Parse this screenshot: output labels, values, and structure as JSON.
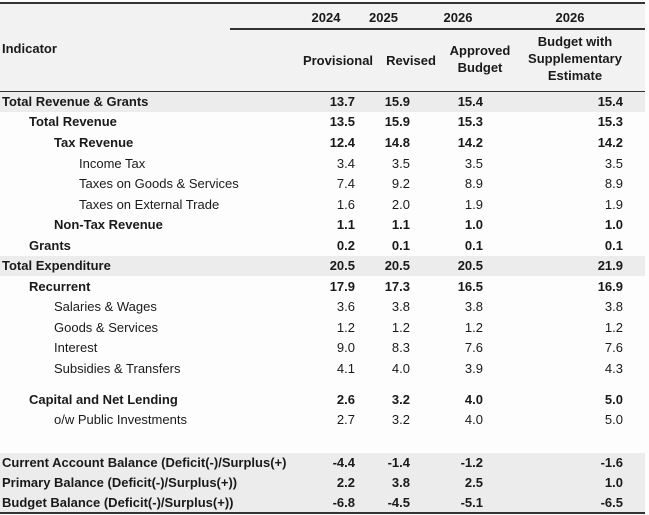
{
  "header": {
    "indicator": "Indicator",
    "columns": [
      {
        "year": "2024",
        "label": "Provisional"
      },
      {
        "year": "2025",
        "label": "Revised"
      },
      {
        "year": "2026",
        "label": "Approved Budget"
      },
      {
        "year": "2026",
        "label": "Budget with Supplementary Estimate"
      }
    ]
  },
  "rows": [
    {
      "label": "Total Revenue & Grants",
      "values": [
        "13.7",
        "15.9",
        "15.4",
        "15.4"
      ]
    },
    {
      "label": "Total Revenue",
      "values": [
        "13.5",
        "15.9",
        "15.3",
        "15.3"
      ]
    },
    {
      "label": "Tax Revenue",
      "values": [
        "12.4",
        "14.8",
        "14.2",
        "14.2"
      ]
    },
    {
      "label": "Income Tax",
      "values": [
        "3.4",
        "3.5",
        "3.5",
        "3.5"
      ]
    },
    {
      "label": "Taxes on Goods & Services",
      "values": [
        "7.4",
        "9.2",
        "8.9",
        "8.9"
      ]
    },
    {
      "label": "Taxes on External Trade",
      "values": [
        "1.6",
        "2.0",
        "1.9",
        "1.9"
      ]
    },
    {
      "label": "Non-Tax Revenue",
      "values": [
        "1.1",
        "1.1",
        "1.0",
        "1.0"
      ]
    },
    {
      "label": "Grants",
      "values": [
        "0.2",
        "0.1",
        "0.1",
        "0.1"
      ]
    },
    {
      "label": "Total Expenditure",
      "values": [
        "20.5",
        "20.5",
        "20.5",
        "21.9"
      ]
    },
    {
      "label": "Recurrent",
      "values": [
        "17.9",
        "17.3",
        "16.5",
        "16.9"
      ]
    },
    {
      "label": "Salaries & Wages",
      "values": [
        "3.6",
        "3.8",
        "3.8",
        "3.8"
      ]
    },
    {
      "label": "Goods & Services",
      "values": [
        "1.2",
        "1.2",
        "1.2",
        "1.2"
      ]
    },
    {
      "label": "Interest",
      "values": [
        "9.0",
        "8.3",
        "7.6",
        "7.6"
      ]
    },
    {
      "label": "Subsidies & Transfers",
      "values": [
        "4.1",
        "4.0",
        "3.9",
        "4.3"
      ]
    },
    {
      "label": "Capital and Net Lending",
      "values": [
        "2.6",
        "3.2",
        "4.0",
        "5.0"
      ]
    },
    {
      "label": "o/w Public Investments",
      "values": [
        "2.7",
        "3.2",
        "4.0",
        "5.0"
      ]
    },
    {
      "label": "Current Account Balance (Deficit(-)/Surplus(+)",
      "values": [
        "-4.4",
        "-1.4",
        "-1.2",
        "-1.6"
      ]
    },
    {
      "label": "Primary Balance (Deficit(-)/Surplus(+))",
      "values": [
        "2.2",
        "3.8",
        "2.5",
        "1.0"
      ]
    },
    {
      "label": "Budget Balance (Deficit(-)/Surplus(+))",
      "values": [
        "-6.8",
        "-4.5",
        "-5.1",
        "-6.5"
      ]
    }
  ]
}
